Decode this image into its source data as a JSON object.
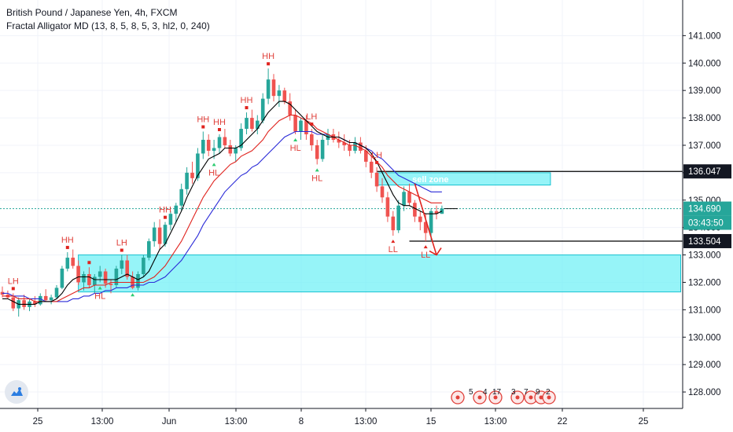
{
  "header": {
    "symbol_line": "British Pound / Japanese Yen, 4h, FXCM",
    "indicator_line": "Fractal Alligator MD (13, 8, 5, 8, 5, 3, hl2, 0, 240)"
  },
  "colors": {
    "bull": "#26a69a",
    "bear": "#ef5350",
    "jaw": "#2b2bd8",
    "teeth": "#e0231e",
    "lips": "#000000",
    "zone_fill": "#73f0f5",
    "zone_border": "#17c2d0",
    "fractal_label": "#e0413b",
    "fractal_up": "#e0231e",
    "fractal_down": "#2ecc71",
    "tag_dark": "#131722",
    "tag_teal": "#26a69a",
    "arrow": "#e0231e"
  },
  "chart_data": {
    "type": "candlestick",
    "ylim": [
      127.4,
      142.3
    ],
    "y_ticks": [
      "141.000",
      "140.000",
      "139.000",
      "138.000",
      "137.000",
      "136.000",
      "135.000",
      "134.000",
      "133.000",
      "132.000",
      "131.000",
      "130.000",
      "129.000",
      "128.000"
    ],
    "x_ticks": [
      "25",
      "13:00",
      "Jun",
      "13:00",
      "8",
      "13:00",
      "15",
      "13:00",
      "22",
      "25"
    ],
    "candles": [
      [
        131.65,
        131.85,
        131.45,
        131.55
      ],
      [
        131.55,
        131.7,
        131.4,
        131.45
      ],
      [
        131.45,
        131.6,
        130.95,
        131.05
      ],
      [
        131.05,
        131.45,
        130.75,
        131.35
      ],
      [
        131.35,
        131.55,
        131.0,
        131.1
      ],
      [
        131.1,
        131.4,
        130.95,
        131.3
      ],
      [
        131.3,
        131.5,
        131.1,
        131.2
      ],
      [
        131.2,
        131.6,
        131.15,
        131.5
      ],
      [
        131.5,
        131.75,
        131.3,
        131.35
      ],
      [
        131.35,
        131.55,
        131.2,
        131.45
      ],
      [
        131.45,
        131.9,
        131.4,
        131.8
      ],
      [
        131.8,
        132.6,
        131.75,
        132.5
      ],
      [
        132.5,
        133.1,
        132.4,
        132.9
      ],
      [
        132.9,
        133.2,
        132.5,
        132.6
      ],
      [
        132.6,
        132.8,
        131.9,
        132.0
      ],
      [
        132.0,
        132.4,
        131.7,
        132.3
      ],
      [
        132.3,
        132.55,
        131.8,
        131.9
      ],
      [
        131.9,
        132.3,
        131.6,
        132.2
      ],
      [
        132.2,
        132.6,
        132.0,
        132.4
      ],
      [
        132.4,
        132.5,
        131.8,
        131.95
      ],
      [
        131.95,
        132.1,
        131.6,
        131.9
      ],
      [
        131.9,
        132.6,
        131.8,
        132.5
      ],
      [
        132.5,
        133.0,
        132.3,
        132.8
      ],
      [
        132.8,
        133.0,
        132.1,
        132.2
      ],
      [
        132.2,
        132.4,
        131.75,
        131.8
      ],
      [
        131.8,
        132.4,
        131.7,
        132.3
      ],
      [
        132.3,
        133.0,
        132.2,
        132.9
      ],
      [
        132.9,
        133.6,
        132.8,
        133.5
      ],
      [
        133.5,
        134.2,
        133.3,
        134.0
      ],
      [
        134.0,
        134.3,
        133.2,
        133.4
      ],
      [
        133.4,
        134.2,
        133.3,
        134.1
      ],
      [
        134.1,
        134.6,
        133.9,
        134.5
      ],
      [
        134.5,
        134.9,
        134.2,
        134.8
      ],
      [
        134.8,
        135.6,
        134.6,
        135.4
      ],
      [
        135.4,
        136.2,
        135.2,
        136.0
      ],
      [
        136.0,
        136.4,
        135.6,
        135.8
      ],
      [
        135.8,
        136.9,
        135.7,
        136.7
      ],
      [
        136.7,
        137.5,
        136.5,
        137.2
      ],
      [
        137.2,
        137.4,
        136.6,
        136.8
      ],
      [
        136.8,
        137.2,
        136.5,
        136.9
      ],
      [
        136.9,
        137.4,
        136.7,
        137.3
      ],
      [
        137.3,
        137.6,
        136.9,
        137.0
      ],
      [
        137.0,
        137.2,
        136.6,
        136.7
      ],
      [
        136.7,
        137.0,
        136.4,
        136.9
      ],
      [
        136.9,
        137.8,
        136.8,
        137.6
      ],
      [
        137.6,
        138.2,
        137.4,
        138.0
      ],
      [
        138.0,
        138.3,
        137.5,
        137.6
      ],
      [
        137.6,
        138.1,
        137.4,
        137.9
      ],
      [
        137.9,
        138.9,
        137.8,
        138.7
      ],
      [
        138.7,
        139.8,
        138.5,
        139.4
      ],
      [
        139.4,
        139.6,
        138.6,
        138.8
      ],
      [
        138.8,
        139.2,
        138.4,
        139.0
      ],
      [
        139.0,
        139.1,
        138.5,
        138.6
      ],
      [
        138.6,
        138.9,
        137.9,
        138.1
      ],
      [
        138.1,
        138.3,
        137.4,
        137.5
      ],
      [
        137.5,
        138.0,
        137.2,
        137.9
      ],
      [
        137.9,
        138.1,
        137.2,
        137.4
      ],
      [
        137.4,
        137.6,
        136.8,
        137.0
      ],
      [
        137.0,
        137.2,
        136.3,
        136.5
      ],
      [
        136.5,
        137.4,
        136.4,
        137.2
      ],
      [
        137.2,
        137.6,
        137.0,
        137.4
      ],
      [
        137.4,
        137.6,
        137.1,
        137.2
      ],
      [
        137.2,
        137.5,
        136.9,
        137.1
      ],
      [
        137.1,
        137.4,
        136.8,
        137.0
      ],
      [
        137.0,
        137.2,
        136.6,
        136.8
      ],
      [
        136.8,
        137.3,
        136.7,
        137.1
      ],
      [
        137.1,
        137.3,
        136.7,
        136.8
      ],
      [
        136.8,
        137.0,
        136.2,
        136.4
      ],
      [
        136.4,
        136.7,
        135.8,
        136.0
      ],
      [
        136.0,
        136.2,
        135.3,
        135.5
      ],
      [
        135.5,
        135.8,
        134.9,
        135.1
      ],
      [
        135.1,
        135.3,
        134.2,
        134.4
      ],
      [
        134.4,
        134.6,
        133.7,
        133.9
      ],
      [
        133.9,
        135.0,
        133.8,
        134.8
      ],
      [
        134.8,
        135.5,
        134.6,
        135.3
      ],
      [
        135.3,
        135.6,
        134.8,
        134.9
      ],
      [
        134.9,
        135.0,
        134.2,
        134.4
      ],
      [
        134.4,
        134.6,
        133.9,
        134.2
      ],
      [
        134.2,
        134.5,
        133.5,
        133.8
      ],
      [
        133.8,
        134.7,
        133.5,
        134.6
      ],
      [
        134.6,
        134.8,
        134.3,
        134.5
      ],
      [
        134.5,
        134.8,
        134.5,
        134.69
      ]
    ],
    "lips": [
      131.4,
      131.4,
      131.3,
      131.2,
      131.2,
      131.2,
      131.2,
      131.3,
      131.3,
      131.3,
      131.4,
      131.6,
      131.9,
      132.1,
      132.2,
      132.2,
      132.2,
      132.1,
      132.1,
      132.1,
      132.1,
      132.1,
      132.2,
      132.3,
      132.2,
      132.1,
      132.2,
      132.4,
      132.8,
      133.2,
      133.4,
      133.8,
      134.2,
      134.6,
      135.1,
      135.5,
      135.9,
      136.2,
      136.5,
      136.6,
      136.7,
      136.9,
      136.9,
      136.9,
      137.0,
      137.2,
      137.4,
      137.6,
      137.9,
      138.2,
      138.4,
      138.6,
      138.6,
      138.5,
      138.3,
      138.1,
      137.9,
      137.7,
      137.5,
      137.4,
      137.3,
      137.3,
      137.3,
      137.2,
      137.1,
      137.1,
      137.0,
      136.9,
      136.7,
      136.4,
      136.0,
      135.6,
      135.2,
      134.9,
      134.8,
      134.8,
      134.7,
      134.6,
      134.5,
      134.5,
      134.5,
      134.6
    ],
    "teeth": [
      131.5,
      131.5,
      131.5,
      131.4,
      131.4,
      131.4,
      131.3,
      131.3,
      131.3,
      131.3,
      131.3,
      131.4,
      131.5,
      131.6,
      131.7,
      131.8,
      131.8,
      131.9,
      131.9,
      131.9,
      132.0,
      132.0,
      132.0,
      132.0,
      132.0,
      132.0,
      132.0,
      132.1,
      132.2,
      132.4,
      132.6,
      132.9,
      133.2,
      133.5,
      133.9,
      134.3,
      134.7,
      135.1,
      135.4,
      135.7,
      135.9,
      136.1,
      136.3,
      136.4,
      136.6,
      136.7,
      136.8,
      137.0,
      137.2,
      137.5,
      137.7,
      137.9,
      138.0,
      138.1,
      138.1,
      138.0,
      137.9,
      137.8,
      137.6,
      137.5,
      137.4,
      137.3,
      137.2,
      137.1,
      137.0,
      137.0,
      136.9,
      136.8,
      136.6,
      136.4,
      136.2,
      135.9,
      135.7,
      135.5,
      135.4,
      135.3,
      135.2,
      135.1,
      135.0,
      134.9,
      134.9,
      134.9
    ],
    "jaw": [
      131.6,
      131.6,
      131.5,
      131.5,
      131.5,
      131.4,
      131.4,
      131.4,
      131.3,
      131.3,
      131.3,
      131.3,
      131.3,
      131.4,
      131.4,
      131.5,
      131.5,
      131.6,
      131.6,
      131.7,
      131.7,
      131.8,
      131.8,
      131.8,
      131.9,
      131.9,
      131.9,
      132.0,
      132.0,
      132.1,
      132.2,
      132.4,
      132.6,
      132.8,
      133.1,
      133.4,
      133.7,
      134.1,
      134.4,
      134.7,
      135.0,
      135.3,
      135.5,
      135.7,
      135.9,
      136.0,
      136.2,
      136.3,
      136.5,
      136.7,
      136.9,
      137.1,
      137.3,
      137.4,
      137.5,
      137.5,
      137.5,
      137.5,
      137.4,
      137.4,
      137.4,
      137.3,
      137.3,
      137.2,
      137.1,
      137.1,
      137.0,
      136.9,
      136.8,
      136.6,
      136.5,
      136.3,
      136.1,
      135.9,
      135.8,
      135.7,
      135.6,
      135.5,
      135.4,
      135.3,
      135.3,
      135.3
    ],
    "fractals": [
      {
        "i": 2,
        "label": "LH",
        "type": "up"
      },
      {
        "i": 12,
        "label": "HH",
        "type": "up"
      },
      {
        "i": 16,
        "label": "",
        "type": "up"
      },
      {
        "i": 18,
        "label": "HL",
        "type": "down"
      },
      {
        "i": 22,
        "label": "LH",
        "type": "up"
      },
      {
        "i": 24,
        "label": "",
        "type": "down"
      },
      {
        "i": 30,
        "label": "HH",
        "type": "up"
      },
      {
        "i": 37,
        "label": "HH",
        "type": "up"
      },
      {
        "i": 40,
        "label": "HH",
        "type": "up"
      },
      {
        "i": 39,
        "label": "HL",
        "type": "down"
      },
      {
        "i": 45,
        "label": "HH",
        "type": "up"
      },
      {
        "i": 49,
        "label": "HH",
        "type": "up"
      },
      {
        "i": 54,
        "label": "HL",
        "type": "down"
      },
      {
        "i": 57,
        "label": "LH",
        "type": "up"
      },
      {
        "i": 58,
        "label": "HL",
        "type": "down"
      },
      {
        "i": 69,
        "label": "LH",
        "type": "up"
      },
      {
        "i": 72,
        "label": "LL",
        "type": "down"
      },
      {
        "i": 78,
        "label": "LL",
        "type": "down"
      }
    ],
    "zones": [
      {
        "label": "sell zone",
        "y_top": 136.0,
        "y_bottom": 135.55,
        "from_index": 69,
        "to_index": 101
      },
      {
        "label": "",
        "y_top": 133.0,
        "y_bottom": 131.65,
        "from_index": 14,
        "to_index": 125
      }
    ],
    "levels": [
      {
        "value": 136.047,
        "label": "136.047",
        "from_index": 69
      },
      {
        "value": 133.504,
        "label": "133.504",
        "from_index": 75
      }
    ],
    "last_price": {
      "value": 134.69,
      "label": "134.690",
      "countdown": "03:43:50"
    },
    "arrow": {
      "from": [
        76,
        135.6
      ],
      "to": [
        80,
        133.0
      ]
    }
  },
  "events": {
    "items": [
      {
        "count": "5",
        "color": "#e0413b"
      },
      {
        "count": "4",
        "color": "#e0413b"
      },
      {
        "count": "17",
        "color": "#e0413b"
      },
      {
        "count": "3",
        "color": "#e0413b"
      },
      {
        "count": "7",
        "color": "#e0413b"
      },
      {
        "count": "9",
        "color": "#e0413b"
      },
      {
        "count": "2",
        "color": "#e0413b"
      }
    ]
  }
}
